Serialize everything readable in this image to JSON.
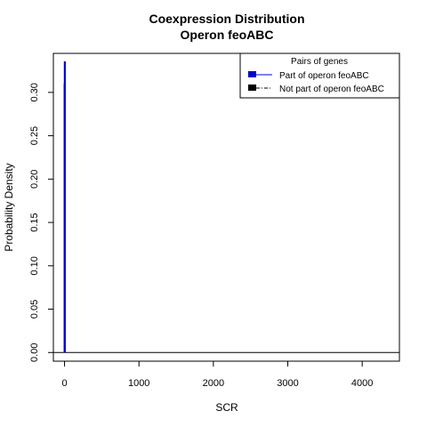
{
  "chart_data": {
    "type": "line",
    "title_line1": "Coexpression Distribution",
    "title_line2": "Operon feoABC",
    "xlabel": "SCR",
    "ylabel": "Probability Density",
    "xlim": [
      -150,
      4500
    ],
    "ylim": [
      -0.01,
      0.345
    ],
    "x_ticks": [
      0,
      1000,
      2000,
      3000,
      4000
    ],
    "x_tick_labels": [
      "0",
      "1000",
      "2000",
      "3000",
      "4000"
    ],
    "y_ticks": [
      0.0,
      0.05,
      0.1,
      0.15,
      0.2,
      0.25,
      0.3
    ],
    "y_tick_labels": [
      "0.00",
      "0.05",
      "0.10",
      "0.15",
      "0.20",
      "0.25",
      "0.30"
    ],
    "legend": {
      "title": "Pairs of genes",
      "position": "top-right",
      "entries": [
        {
          "label": "Part of operon feoABC",
          "color": "#0000cc",
          "line": "solid"
        },
        {
          "label": "Not part of operon feoABC",
          "color": "#000000",
          "line": "dotdash"
        }
      ]
    },
    "series": [
      {
        "name": "Part of operon feoABC",
        "color": "#0000cc",
        "points": [
          [
            0,
            0.0
          ],
          [
            0,
            0.335
          ],
          [
            8,
            0.335
          ],
          [
            8,
            0.0
          ]
        ]
      },
      {
        "name": "Not part of operon feoABC",
        "color": "#000000",
        "points": [
          [
            -150,
            0.0
          ],
          [
            -5,
            0.0
          ],
          [
            -5,
            0.31
          ],
          [
            5,
            0.31
          ],
          [
            5,
            0.0
          ],
          [
            4500,
            0.0
          ]
        ]
      }
    ]
  }
}
